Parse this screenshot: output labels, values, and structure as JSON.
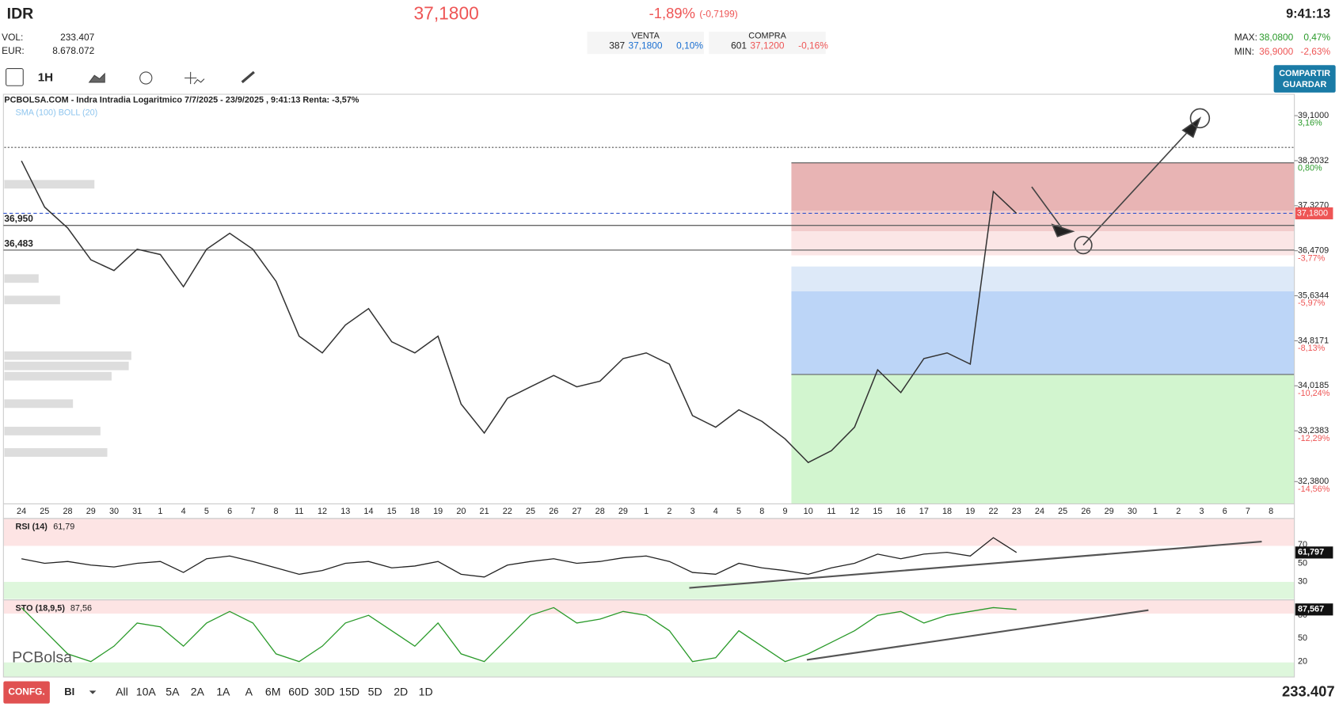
{
  "header": {
    "symbol": "IDR",
    "price": "37,1800",
    "change": "-1,89%",
    "change_abs": "(-0,7199)",
    "time": "9:41:13",
    "vol_label": "VOL:",
    "vol": "233.407",
    "eur_label": "EUR:",
    "eur": "8.678.072",
    "venta": {
      "label": "VENTA",
      "qty": "387",
      "price": "37,1800",
      "pct": "0,10%"
    },
    "compra": {
      "label": "COMPRA",
      "qty": "601",
      "price": "37,1200",
      "pct": "-0,16%"
    },
    "max": {
      "label": "MAX:",
      "price": "38,0800",
      "pct": "0,47%"
    },
    "min": {
      "label": "MIN:",
      "price": "36,9000",
      "pct": "-2,63%"
    }
  },
  "toolbar": {
    "interval": "1H",
    "share": "COMPARTIR",
    "save": "GUARDAR"
  },
  "chart_data": {
    "type": "line",
    "log_scale": true,
    "title": "PCBOLSA.COM - Indra Intradia Logaritmico 7/7/2025 - 23/9/2025 , 9:41:13 Renta: -3,57%",
    "indicators": "SMA (100) BOLL (20)",
    "ylim": [
      32.01,
      39.22
    ],
    "yticks": [
      {
        "value": 39.1,
        "label": "39,1000",
        "pct": "3,16%"
      },
      {
        "value": 38.2032,
        "label": "38,2032",
        "pct": "0,80%"
      },
      {
        "value": 37.327,
        "label": "37,3270"
      },
      {
        "value": 36.4709,
        "label": "36,4709",
        "pct": "-3,77%"
      },
      {
        "value": 35.6344,
        "label": "35,6344",
        "pct": "-5,97%"
      },
      {
        "value": 34.8171,
        "label": "34,8171",
        "pct": "-8,13%"
      },
      {
        "value": 34.0185,
        "label": "34,0185",
        "pct": "-10,24%"
      },
      {
        "value": 33.2383,
        "label": "33,2383",
        "pct": "-12,29%"
      },
      {
        "value": 32.38,
        "label": "32,3800",
        "pct": "-14,56%"
      }
    ],
    "last": {
      "value": 37.18,
      "label": "37,1800"
    },
    "levels": [
      {
        "value": 36.95,
        "label": "36,950"
      },
      {
        "value": 36.483,
        "label": "36,483"
      }
    ],
    "categories": [
      "24",
      "25",
      "28",
      "29",
      "30",
      "31",
      "1",
      "4",
      "5",
      "6",
      "7",
      "8",
      "11",
      "12",
      "13",
      "14",
      "15",
      "18",
      "19",
      "20",
      "21",
      "22",
      "25",
      "26",
      "27",
      "28",
      "29",
      "1",
      "2",
      "3",
      "4",
      "5",
      "8",
      "9",
      "10",
      "11",
      "12",
      "15",
      "16",
      "17",
      "18",
      "19",
      "22",
      "23",
      "24",
      "25",
      "26",
      "29",
      "30",
      "1",
      "2",
      "3",
      "6",
      "7",
      "8"
    ],
    "series": [
      {
        "name": "Indra",
        "color": "#333333",
        "values": [
          38.2,
          37.3,
          36.9,
          36.3,
          36.1,
          36.5,
          36.4,
          35.8,
          36.5,
          36.8,
          36.5,
          35.9,
          34.9,
          34.6,
          35.1,
          35.4,
          34.8,
          34.6,
          34.9,
          33.7,
          33.2,
          33.8,
          34.0,
          34.2,
          34.0,
          34.1,
          34.5,
          34.6,
          34.4,
          33.5,
          33.3,
          33.6,
          33.4,
          33.1,
          32.7,
          32.9,
          33.3,
          34.3,
          33.9,
          34.5,
          34.6,
          34.4,
          37.6,
          37.18,
          null,
          null,
          null,
          null,
          null,
          null,
          null,
          null,
          null,
          null,
          null
        ]
      }
    ]
  },
  "rsi": {
    "label": "RSI (14)",
    "value": "61,79",
    "axis_value": "61,797",
    "ylim": [
      10,
      99
    ],
    "yticks": [
      70,
      50,
      30
    ],
    "values": [
      55,
      50,
      52,
      48,
      46,
      50,
      52,
      40,
      55,
      58,
      52,
      45,
      38,
      42,
      50,
      52,
      45,
      47,
      52,
      38,
      35,
      48,
      52,
      55,
      50,
      52,
      56,
      58,
      52,
      40,
      38,
      50,
      45,
      42,
      38,
      45,
      50,
      60,
      55,
      60,
      62,
      58,
      78,
      61.79
    ]
  },
  "sto": {
    "label": "STO (18,9,5)",
    "value": "87,56",
    "axis_value": "87,567",
    "ylim": [
      0,
      100
    ],
    "yticks": [
      80,
      50,
      20
    ],
    "values": [
      90,
      60,
      30,
      20,
      40,
      70,
      65,
      40,
      70,
      85,
      70,
      30,
      20,
      40,
      70,
      80,
      60,
      40,
      70,
      30,
      20,
      50,
      80,
      90,
      70,
      75,
      85,
      80,
      60,
      20,
      25,
      60,
      40,
      20,
      30,
      45,
      60,
      80,
      85,
      70,
      80,
      85,
      90,
      87.56
    ]
  },
  "logo": "PCBolsa",
  "footer": {
    "config": "CONFG.",
    "mode": "BI",
    "ranges": [
      "All",
      "10A",
      "5A",
      "2A",
      "1A",
      "A",
      "6M",
      "60D",
      "30D",
      "15D",
      "5D",
      "2D",
      "1D"
    ],
    "volume": "233.407"
  }
}
